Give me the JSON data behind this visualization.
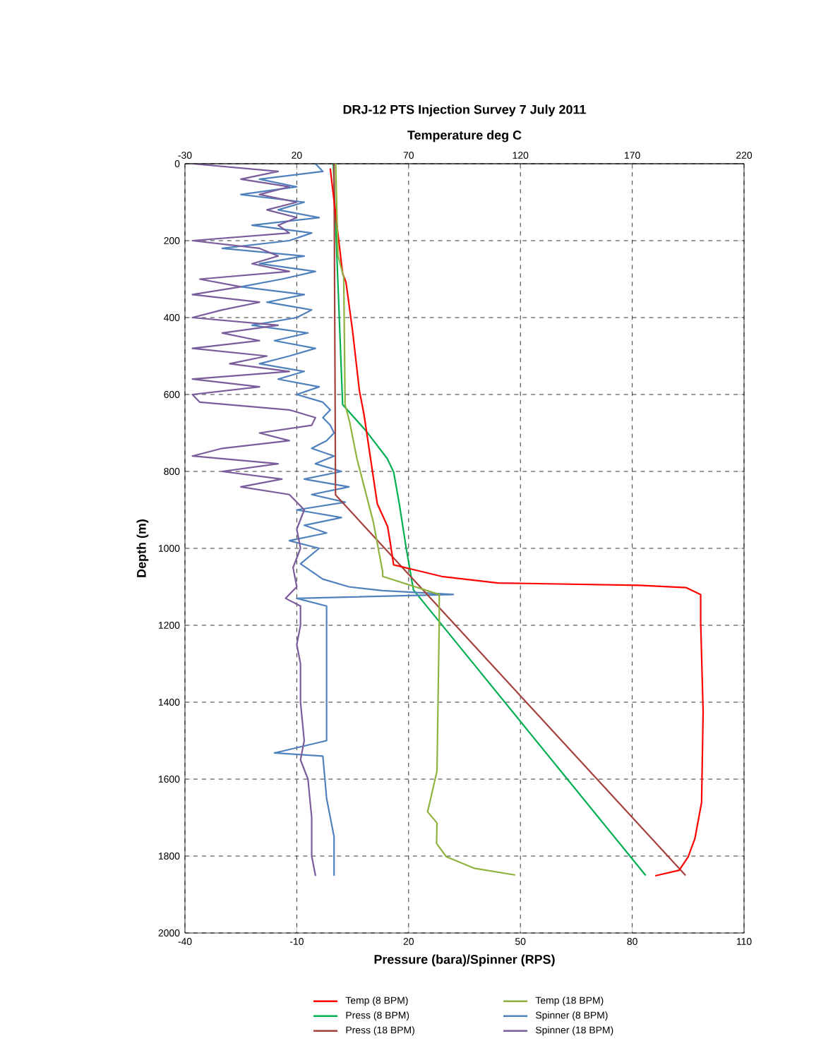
{
  "chart_data": {
    "type": "line",
    "title": "DRJ-12  PTS Injection Survey 7 July 2011",
    "xlabel": "Pressure (bara)/Spinner (RPS)",
    "x2label": "Temperature deg C",
    "ylabel": "Depth (m)",
    "xlim": [
      -40,
      110
    ],
    "xticks": [
      -40,
      -10,
      20,
      50,
      80,
      110
    ],
    "x2lim": [
      -30,
      220
    ],
    "x2ticks": [
      -30,
      20,
      70,
      120,
      170,
      220
    ],
    "ylim": [
      2000,
      0
    ],
    "yticks": [
      0,
      200,
      400,
      600,
      800,
      1000,
      1200,
      1400,
      1600,
      1800,
      2000
    ],
    "grid": true,
    "legend": "bottom",
    "line_style": "solid",
    "series": [
      {
        "name": "Temp (8 BPM)",
        "color": "#ff0000",
        "axis": "x2",
        "x": [
          35,
          40.5,
          42,
          45,
          48,
          50,
          53,
          56,
          60.6,
          61.6,
          63.3,
          72,
          84.8,
          110,
          173,
          194,
          200.6,
          200.6,
          201.7,
          201,
          198,
          195,
          191,
          180.6
        ],
        "values": [
          14,
          285,
          308,
          437,
          590,
          650,
          767,
          884,
          943,
          978,
          1043,
          1055,
          1073,
          1090,
          1096,
          1102,
          1120,
          1191,
          1426,
          1661,
          1755,
          1802,
          1837,
          1851
        ]
      },
      {
        "name": "Temp (18 BPM)",
        "color": "#8db33e",
        "axis": "x2",
        "x": [
          37.4,
          38.4,
          41,
          41.6,
          43.7,
          46.9,
          54.2,
          58.4,
          58.4,
          83.7,
          83.7,
          82.7,
          78.5,
          82.7,
          82.5,
          86.9,
          99.5,
          117.4
        ],
        "values": [
          0,
          238,
          296,
          626,
          673,
          767,
          931,
          1061,
          1073,
          1120,
          1191,
          1579,
          1685,
          1714,
          1767,
          1802,
          1832,
          1849
        ]
      },
      {
        "name": "Press (8 BPM)",
        "color": "#00b050",
        "x": [
          -0.2,
          2.3,
          8.7,
          14.3,
          16,
          17.5,
          19.4,
          21.3,
          83.5
        ],
        "values": [
          0,
          626,
          696,
          767,
          802,
          884,
          1002,
          1108,
          1849
        ]
      },
      {
        "name": "Spinner (8 BPM)",
        "color": "#4f81bd",
        "x": [
          -5,
          -3,
          -20,
          -10,
          -25,
          -8,
          -15,
          -4,
          -22,
          -6,
          -12,
          -30,
          -8,
          -20,
          -5,
          -14,
          -25,
          -8,
          -18,
          -6,
          -10,
          -22,
          -7,
          -16,
          -5,
          -12,
          -20,
          -8,
          -15,
          -4,
          -10,
          -3,
          -1,
          -3,
          -1,
          0,
          -2,
          -6,
          0,
          -5,
          2,
          -8,
          4,
          -6,
          3,
          -10,
          2,
          -8,
          -2,
          -12,
          -4,
          -9,
          -3,
          4,
          13,
          32,
          -10,
          -2,
          -2,
          -16,
          -3,
          -2,
          0,
          0
        ],
        "values": [
          0,
          20,
          40,
          60,
          80,
          100,
          120,
          140,
          160,
          180,
          200,
          220,
          240,
          260,
          280,
          300,
          320,
          340,
          360,
          380,
          400,
          420,
          440,
          460,
          480,
          500,
          520,
          540,
          560,
          580,
          600,
          620,
          640,
          660,
          680,
          700,
          720,
          740,
          760,
          780,
          800,
          820,
          840,
          860,
          880,
          900,
          920,
          940,
          960,
          980,
          1000,
          1040,
          1080,
          1100,
          1110,
          1120,
          1130,
          1150,
          1500,
          1532,
          1540,
          1650,
          1750,
          1850
        ]
      },
      {
        "name": "Press (18 BPM)",
        "color": "#a5413c",
        "x": [
          0,
          0.4,
          94.2
        ],
        "values": [
          0,
          861,
          1849
        ]
      },
      {
        "name": "Spinner (18 BPM)",
        "color": "#7a5c9c",
        "x": [
          -38,
          -15,
          -25,
          -12,
          -20,
          -10,
          -18,
          -10,
          -15,
          -12,
          -38,
          -20,
          -15,
          -22,
          -12,
          -36,
          -25,
          -38,
          -20,
          -30,
          -38,
          -15,
          -30,
          -20,
          -38,
          -18,
          -28,
          -12,
          -38,
          -20,
          -38,
          -36,
          -12,
          -5,
          -6,
          -20,
          -12,
          -30,
          -38,
          -15,
          -30,
          -14,
          -25,
          -12,
          -10,
          -8,
          -10,
          -9,
          -11,
          -10,
          -13,
          -9,
          -9,
          -10,
          -9,
          -9,
          -8,
          -9,
          -7,
          -6,
          -6,
          -5
        ],
        "values": [
          0,
          20,
          40,
          60,
          80,
          100,
          120,
          140,
          160,
          180,
          200,
          220,
          240,
          260,
          280,
          300,
          320,
          340,
          360,
          380,
          400,
          420,
          440,
          460,
          480,
          500,
          520,
          540,
          560,
          580,
          600,
          620,
          640,
          660,
          680,
          700,
          720,
          740,
          760,
          780,
          800,
          820,
          840,
          860,
          880,
          900,
          950,
          1000,
          1050,
          1100,
          1130,
          1150,
          1200,
          1250,
          1300,
          1400,
          1500,
          1550,
          1600,
          1700,
          1800,
          1850
        ]
      }
    ]
  }
}
